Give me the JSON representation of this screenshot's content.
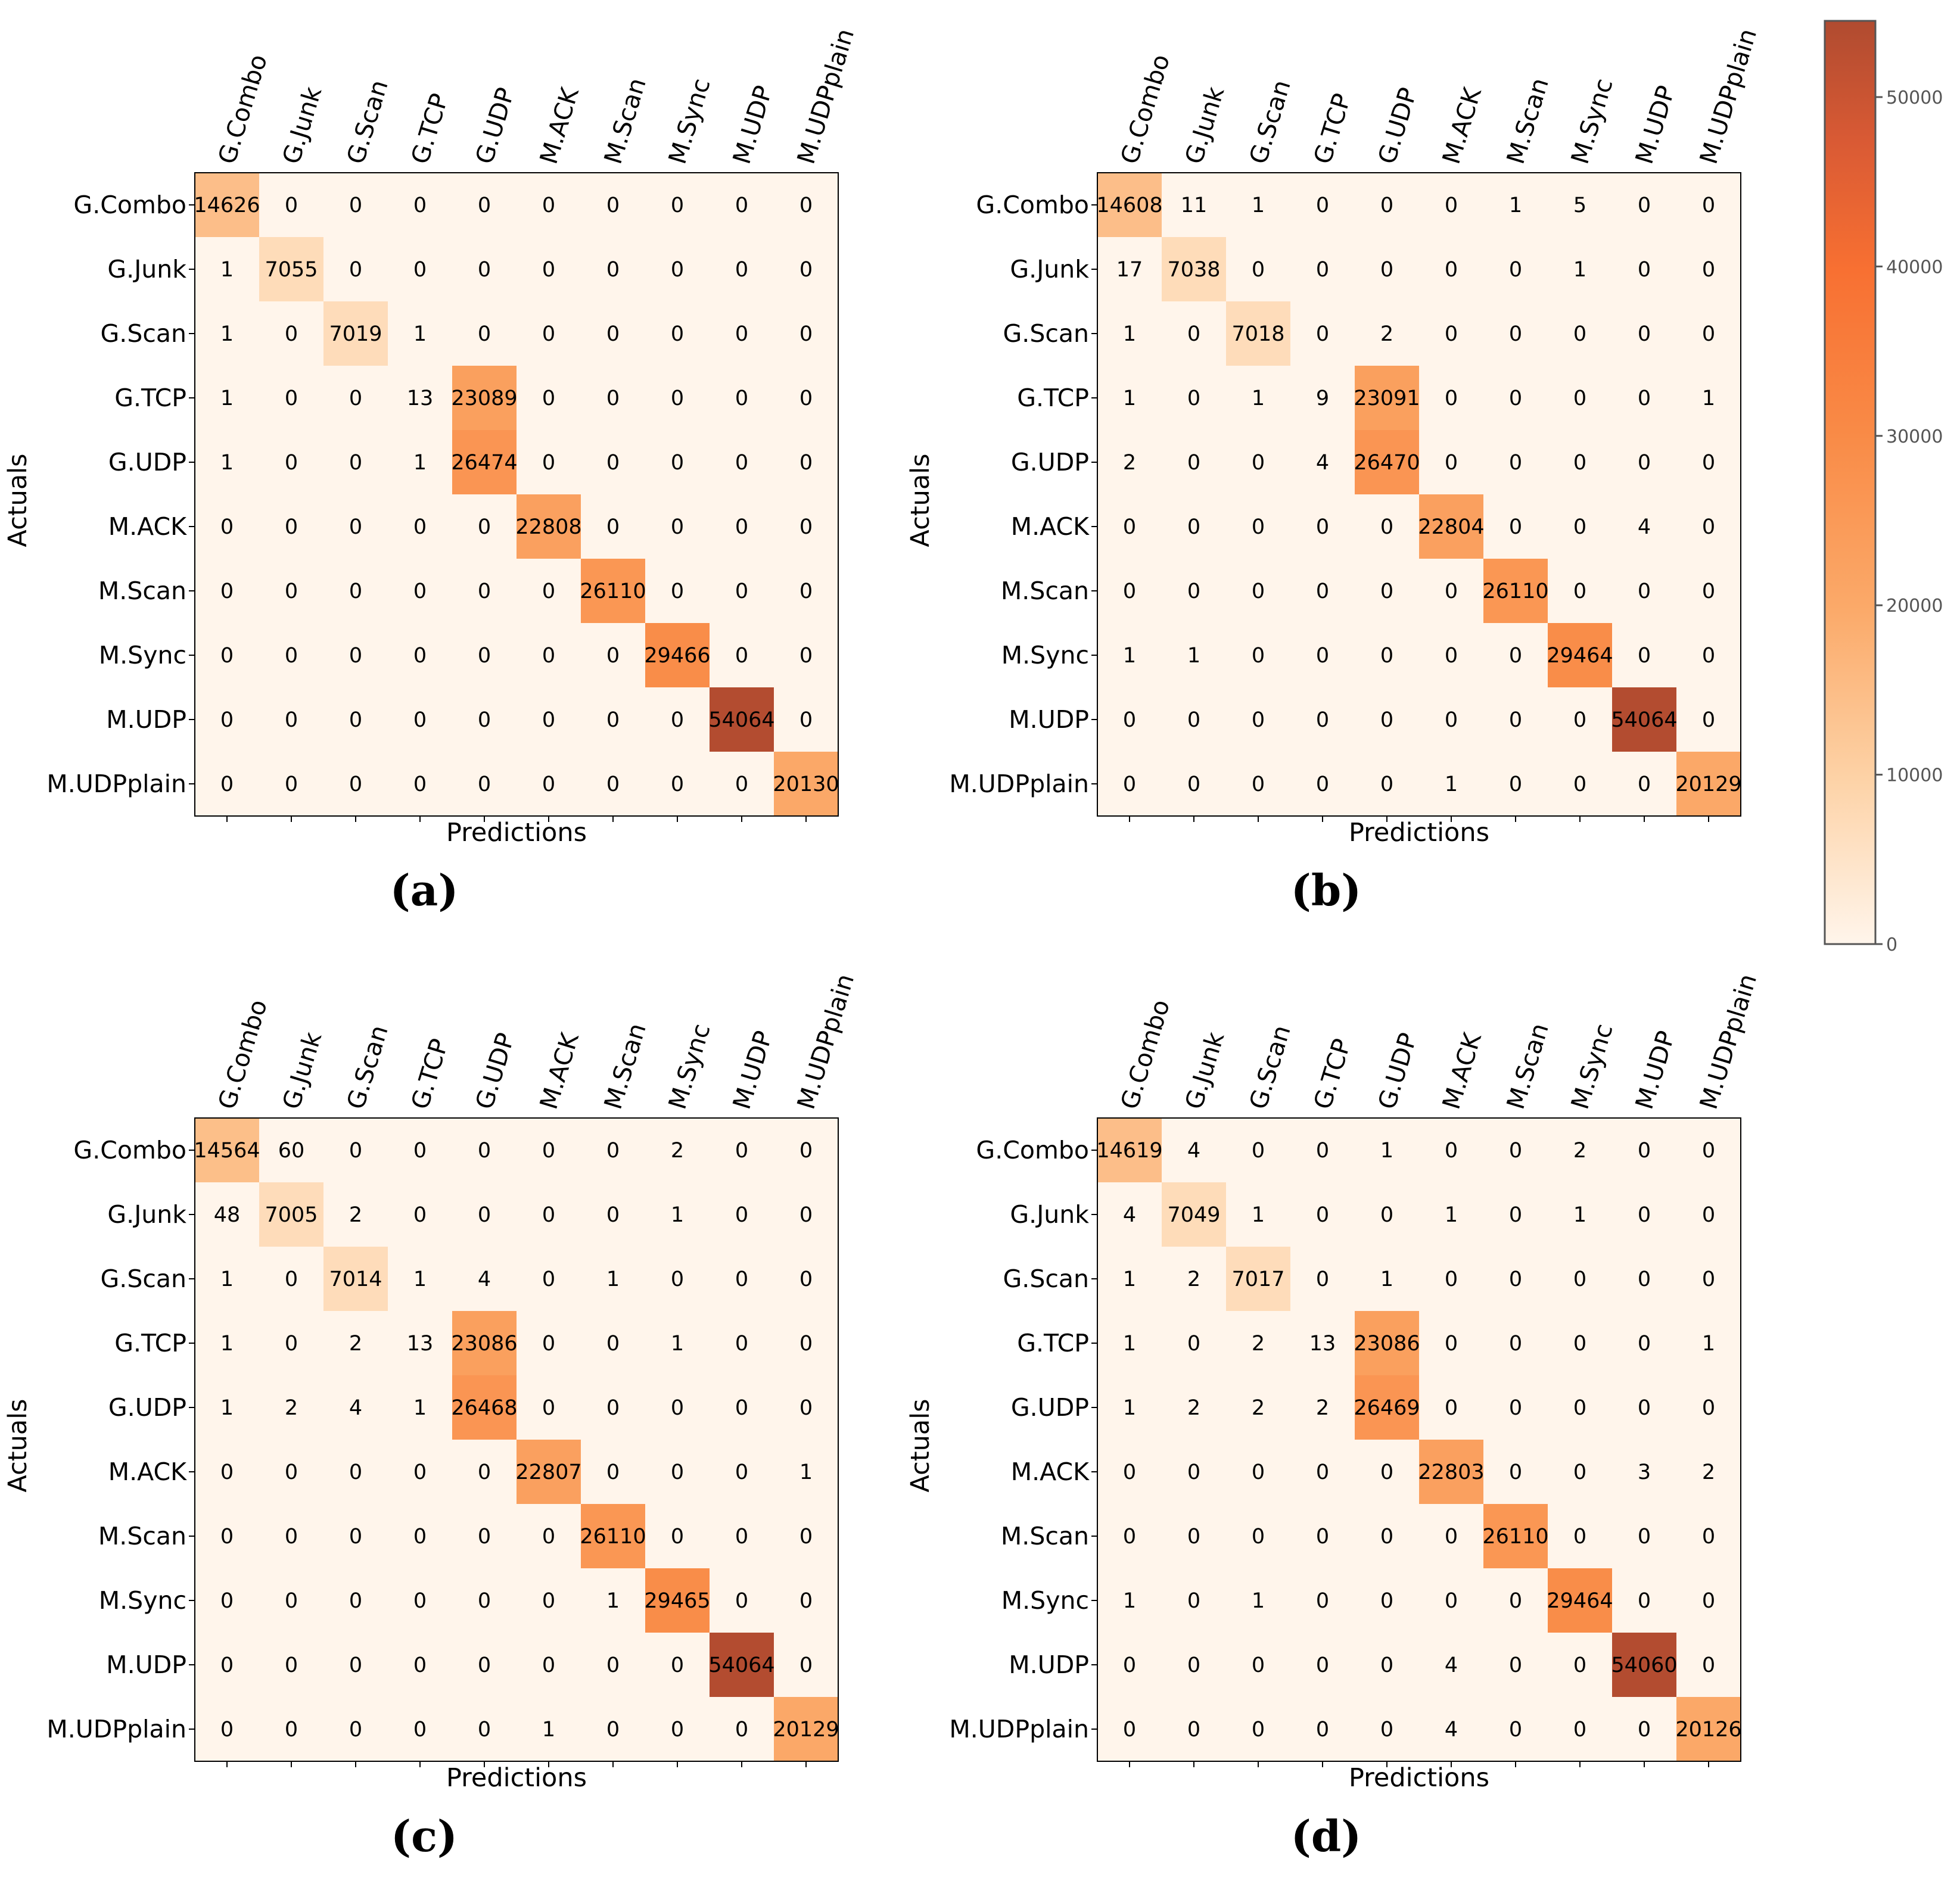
{
  "chart_data": {
    "type": "heatmap",
    "title": "",
    "xlabel": "Predictions",
    "ylabel": "Actuals",
    "classes": [
      "G.Combo",
      "G.Junk",
      "G.Scan",
      "G.TCP",
      "G.UDP",
      "M.ACK",
      "M.Scan",
      "M.Sync",
      "M.UDP",
      "M.UDPplain"
    ],
    "colorbar": {
      "min": 0,
      "max": 54500,
      "ticks": [
        0,
        10000,
        20000,
        30000,
        40000,
        50000
      ]
    },
    "panels": [
      {
        "label": "(a)",
        "matrix": [
          [
            14626,
            0,
            0,
            0,
            0,
            0,
            0,
            0,
            0,
            0
          ],
          [
            1,
            7055,
            0,
            0,
            0,
            0,
            0,
            0,
            0,
            0
          ],
          [
            1,
            0,
            7019,
            1,
            0,
            0,
            0,
            0,
            0,
            0
          ],
          [
            1,
            0,
            0,
            13,
            23089,
            0,
            0,
            0,
            0,
            0
          ],
          [
            1,
            0,
            0,
            1,
            26474,
            0,
            0,
            0,
            0,
            0
          ],
          [
            0,
            0,
            0,
            0,
            0,
            22808,
            0,
            0,
            0,
            0
          ],
          [
            0,
            0,
            0,
            0,
            0,
            0,
            26110,
            0,
            0,
            0
          ],
          [
            0,
            0,
            0,
            0,
            0,
            0,
            0,
            29466,
            0,
            0
          ],
          [
            0,
            0,
            0,
            0,
            0,
            0,
            0,
            0,
            54064,
            0
          ],
          [
            0,
            0,
            0,
            0,
            0,
            0,
            0,
            0,
            0,
            20130
          ]
        ]
      },
      {
        "label": "(b)",
        "matrix": [
          [
            14608,
            11,
            1,
            0,
            0,
            0,
            1,
            5,
            0,
            0
          ],
          [
            17,
            7038,
            0,
            0,
            0,
            0,
            0,
            1,
            0,
            0
          ],
          [
            1,
            0,
            7018,
            0,
            2,
            0,
            0,
            0,
            0,
            0
          ],
          [
            1,
            0,
            1,
            9,
            23091,
            0,
            0,
            0,
            0,
            1
          ],
          [
            2,
            0,
            0,
            4,
            26470,
            0,
            0,
            0,
            0,
            0
          ],
          [
            0,
            0,
            0,
            0,
            0,
            22804,
            0,
            0,
            4,
            0
          ],
          [
            0,
            0,
            0,
            0,
            0,
            0,
            26110,
            0,
            0,
            0
          ],
          [
            1,
            1,
            0,
            0,
            0,
            0,
            0,
            29464,
            0,
            0
          ],
          [
            0,
            0,
            0,
            0,
            0,
            0,
            0,
            0,
            54064,
            0
          ],
          [
            0,
            0,
            0,
            0,
            0,
            1,
            0,
            0,
            0,
            20129
          ]
        ]
      },
      {
        "label": "(c)",
        "matrix": [
          [
            14564,
            60,
            0,
            0,
            0,
            0,
            0,
            2,
            0,
            0
          ],
          [
            48,
            7005,
            2,
            0,
            0,
            0,
            0,
            1,
            0,
            0
          ],
          [
            1,
            0,
            7014,
            1,
            4,
            0,
            1,
            0,
            0,
            0
          ],
          [
            1,
            0,
            2,
            13,
            23086,
            0,
            0,
            1,
            0,
            0
          ],
          [
            1,
            2,
            4,
            1,
            26468,
            0,
            0,
            0,
            0,
            0
          ],
          [
            0,
            0,
            0,
            0,
            0,
            22807,
            0,
            0,
            0,
            1
          ],
          [
            0,
            0,
            0,
            0,
            0,
            0,
            26110,
            0,
            0,
            0
          ],
          [
            0,
            0,
            0,
            0,
            0,
            0,
            1,
            29465,
            0,
            0
          ],
          [
            0,
            0,
            0,
            0,
            0,
            0,
            0,
            0,
            54064,
            0
          ],
          [
            0,
            0,
            0,
            0,
            0,
            1,
            0,
            0,
            0,
            20129
          ]
        ]
      },
      {
        "label": "(d)",
        "matrix": [
          [
            14619,
            4,
            0,
            0,
            1,
            0,
            0,
            2,
            0,
            0
          ],
          [
            4,
            7049,
            1,
            0,
            0,
            1,
            0,
            1,
            0,
            0
          ],
          [
            1,
            2,
            7017,
            0,
            1,
            0,
            0,
            0,
            0,
            0
          ],
          [
            1,
            0,
            2,
            13,
            23086,
            0,
            0,
            0,
            0,
            1
          ],
          [
            1,
            2,
            2,
            2,
            26469,
            0,
            0,
            0,
            0,
            0
          ],
          [
            0,
            0,
            0,
            0,
            0,
            22803,
            0,
            0,
            3,
            2
          ],
          [
            0,
            0,
            0,
            0,
            0,
            0,
            26110,
            0,
            0,
            0
          ],
          [
            1,
            0,
            1,
            0,
            0,
            0,
            0,
            29464,
            0,
            0
          ],
          [
            0,
            0,
            0,
            0,
            0,
            4,
            0,
            0,
            54060,
            0
          ],
          [
            0,
            0,
            0,
            0,
            0,
            4,
            0,
            0,
            0,
            20126
          ]
        ]
      }
    ]
  }
}
